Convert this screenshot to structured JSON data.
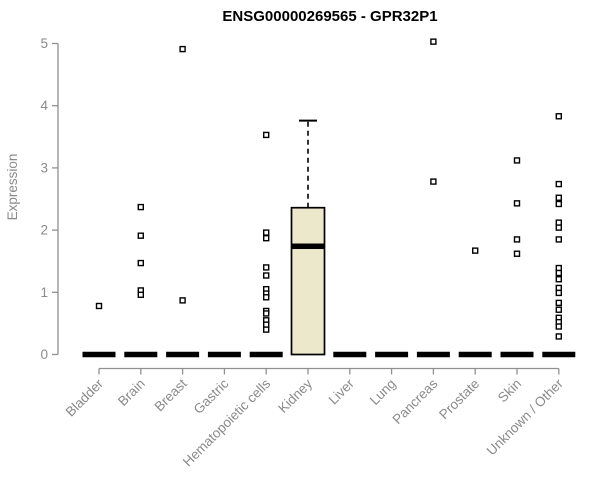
{
  "chart_data": {
    "type": "boxplot",
    "title": "ENSG00000269565 - GPR32P1",
    "ylabel": "Expression",
    "ylim": [
      0,
      5
    ],
    "yticks": [
      "0",
      "1",
      "2",
      "3",
      "4",
      "5"
    ],
    "grid": false,
    "legend": null,
    "categories": [
      "Bladder",
      "Brain",
      "Breast",
      "Gastric",
      "Hematopoietic cells",
      "Kidney",
      "Liver",
      "Lung",
      "Pancreas",
      "Prostate",
      "Skin",
      "Unknown / Other"
    ],
    "boxes": [
      {
        "category": "Bladder",
        "q1": 0,
        "median": 0,
        "q3": 0,
        "whisker_low": 0,
        "whisker_high": 0,
        "outliers": [
          0.78
        ]
      },
      {
        "category": "Brain",
        "q1": 0,
        "median": 0,
        "q3": 0,
        "whisker_low": 0,
        "whisker_high": 0,
        "outliers": [
          2.37,
          1.91,
          1.47,
          1.03,
          0.96
        ]
      },
      {
        "category": "Breast",
        "q1": 0,
        "median": 0,
        "q3": 0,
        "whisker_low": 0,
        "whisker_high": 0,
        "outliers": [
          4.91,
          0.87
        ]
      },
      {
        "category": "Gastric",
        "q1": 0,
        "median": 0,
        "q3": 0,
        "whisker_low": 0,
        "whisker_high": 0,
        "outliers": []
      },
      {
        "category": "Hematopoietic cells",
        "q1": 0,
        "median": 0,
        "q3": 0,
        "whisker_low": 0,
        "whisker_high": 0,
        "outliers": [
          3.53,
          1.96,
          1.87,
          1.4,
          1.27,
          1.05,
          0.98,
          0.92,
          0.7,
          0.66,
          0.55,
          0.48,
          0.4
        ]
      },
      {
        "category": "Kidney",
        "q1": 0,
        "median": 1.74,
        "q3": 2.36,
        "whisker_low": 0,
        "whisker_high": 3.76,
        "outliers": []
      },
      {
        "category": "Liver",
        "q1": 0,
        "median": 0,
        "q3": 0,
        "whisker_low": 0,
        "whisker_high": 0,
        "outliers": []
      },
      {
        "category": "Lung",
        "q1": 0,
        "median": 0,
        "q3": 0,
        "whisker_low": 0,
        "whisker_high": 0,
        "outliers": []
      },
      {
        "category": "Pancreas",
        "q1": 0,
        "median": 0,
        "q3": 0,
        "whisker_low": 0,
        "whisker_high": 0,
        "outliers": [
          5.03,
          2.78
        ]
      },
      {
        "category": "Prostate",
        "q1": 0,
        "median": 0,
        "q3": 0,
        "whisker_low": 0,
        "whisker_high": 0,
        "outliers": [
          1.67
        ]
      },
      {
        "category": "Skin",
        "q1": 0,
        "median": 0,
        "q3": 0,
        "whisker_low": 0,
        "whisker_high": 0,
        "outliers": [
          3.12,
          2.43,
          1.85,
          1.62
        ]
      },
      {
        "category": "Unknown / Other",
        "q1": 0,
        "median": 0,
        "q3": 0,
        "whisker_low": 0,
        "whisker_high": 0,
        "outliers": [
          3.83,
          2.74,
          2.52,
          2.42,
          2.12,
          2.04,
          1.85,
          1.39,
          1.31,
          1.21,
          1.07,
          0.99,
          0.83,
          0.72,
          0.59,
          0.52,
          0.45,
          0.29
        ]
      }
    ],
    "colors": {
      "box_fill": "#ece8cb",
      "box_border": "#000000",
      "median": "#000000",
      "outlier": "#000000",
      "axis": "#909090",
      "tick_text": "#8a8a8a",
      "title": "#000000",
      "background": "#ffffff"
    }
  }
}
